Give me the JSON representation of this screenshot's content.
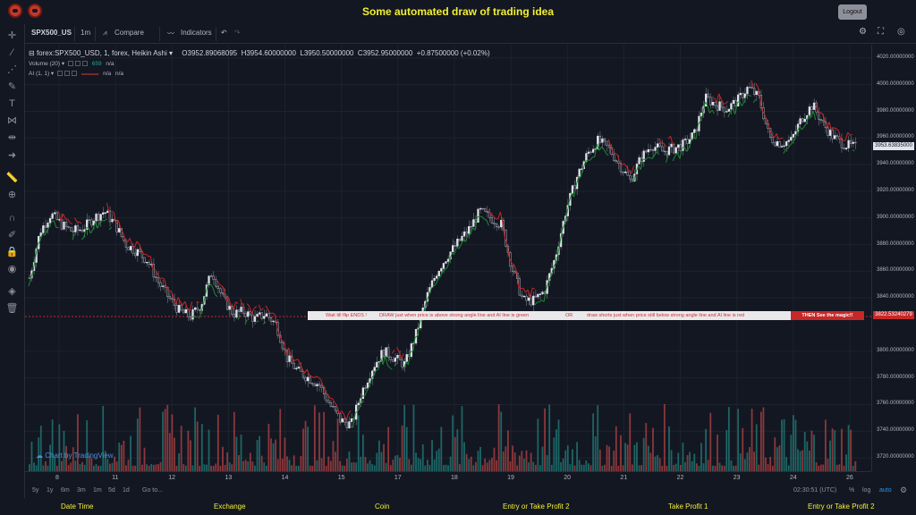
{
  "app": {
    "title": "Some automated draw of trading idea",
    "logout_label": "Logout"
  },
  "toolbar": {
    "symbol": "SPX500_US",
    "interval": "1m",
    "compare": "Compare",
    "indicators": "Indicators"
  },
  "legend": {
    "symbol_line": "forex:SPX500_USD, 1, forex, Heikin Ashi",
    "open": "O3952.89068095",
    "high": "H3954.60000000",
    "low": "L3950.50000000",
    "close": "C3952.95000000",
    "change": "+0.87500000 (+0.02%)",
    "volume_label": "Volume (20)",
    "volume_value": "659",
    "volume_na": "n/a",
    "ai_label": "AI (1, 1)",
    "ai_na1": "n/a",
    "ai_na2": "n/a"
  },
  "banner": {
    "part1": "Wait till flip ENDS !",
    "part2": "DRAW just when price is above strong angle line and AI line is green",
    "part3": "OR",
    "part4": "draw shorts just when price still below strong angle line and AI line is red",
    "tag": "THEN See the magic!!"
  },
  "watermark": "Chart by TradingView",
  "price_axis": {
    "labels": [
      "4020.00000000",
      "4000.00000000",
      "3980.00000000",
      "3960.00000000",
      "3940.00000000",
      "3920.00000000",
      "3900.00000000",
      "3880.00000000",
      "3860.00000000",
      "3840.00000000",
      "3800.00000000",
      "3780.00000000",
      "3760.00000000",
      "3740.00000000",
      "3720.00000000"
    ],
    "current_price": "3953.63835000",
    "line_price": "3822.53240279"
  },
  "time_axis": {
    "labels": [
      "8",
      "11",
      "12",
      "13",
      "14",
      "15",
      "17",
      "18",
      "19",
      "20",
      "21",
      "22",
      "23",
      "24",
      "26"
    ]
  },
  "ranges": {
    "items": [
      "5y",
      "1y",
      "6m",
      "3m",
      "1m",
      "5d",
      "1d"
    ],
    "goto": "Go to...",
    "clock": "02:30:51 (UTC)",
    "percent": "%",
    "log": "log",
    "auto": "auto"
  },
  "footer": {
    "columns": [
      "Date Time",
      "Exchange",
      "Coin",
      "Entry or Take Profit 2",
      "Take Profit 1",
      "Entry or Take Profit 2"
    ]
  },
  "colors": {
    "accent_yellow": "#f3ef32",
    "bull": "#26a69a",
    "bear": "#ef5350",
    "ai_green": "#1b8a2f",
    "ai_red": "#c62828",
    "background": "#131722"
  },
  "chart_data": {
    "type": "candlestick",
    "ylim": [
      3710,
      4030
    ],
    "series": [
      {
        "name": "SPX500_USD",
        "approx_close_path": [
          3855,
          3890,
          3903,
          3895,
          3890,
          3892,
          3900,
          3905,
          3895,
          3880,
          3875,
          3868,
          3852,
          3840,
          3830,
          3826,
          3835,
          3860,
          3840,
          3828,
          3830,
          3824,
          3828,
          3820,
          3795,
          3785,
          3780,
          3775,
          3760,
          3748,
          3745,
          3770,
          3788,
          3800,
          3795,
          3790,
          3812,
          3840,
          3860,
          3872,
          3882,
          3892,
          3905,
          3900,
          3895,
          3862,
          3838,
          3838,
          3845,
          3870,
          3905,
          3930,
          3948,
          3958,
          3952,
          3940,
          3928,
          3945,
          3955,
          3950,
          3952,
          3955,
          3963,
          3990,
          3985,
          3982,
          3988,
          3998,
          3990,
          3960,
          3956,
          3958,
          3975,
          3985,
          3970,
          3960,
          3955,
          3953
        ]
      }
    ]
  }
}
